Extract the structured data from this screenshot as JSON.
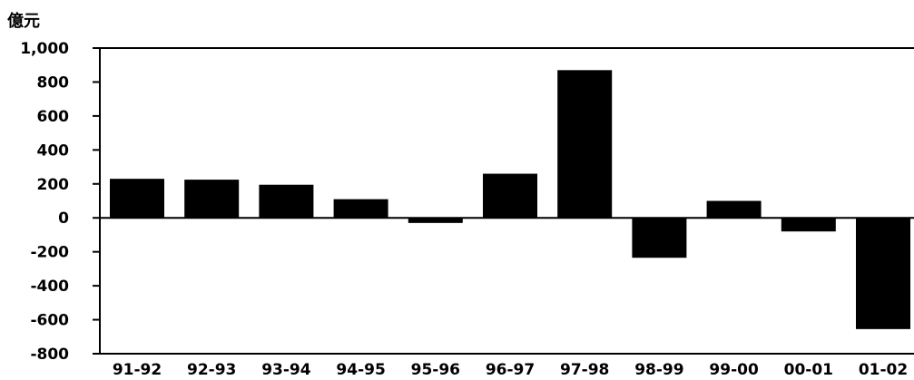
{
  "chart_data": {
    "type": "bar",
    "unit_label": "億元",
    "categories": [
      "91-92",
      "92-93",
      "93-94",
      "94-95",
      "95-96",
      "96-97",
      "97-98",
      "98-99",
      "99-00",
      "00-01",
      "01-02"
    ],
    "values": [
      230,
      225,
      195,
      110,
      -30,
      260,
      870,
      -235,
      100,
      -80,
      -655
    ],
    "ylim": [
      -800,
      1000
    ],
    "yticks": [
      1000,
      800,
      600,
      400,
      200,
      0,
      -200,
      -400,
      -600,
      -800
    ],
    "ytick_labels": [
      "1,000",
      "800",
      "600",
      "400",
      "200",
      "0",
      "-200",
      "-400",
      "-600",
      "-800"
    ],
    "grid": false,
    "bar_color": "#000000"
  }
}
